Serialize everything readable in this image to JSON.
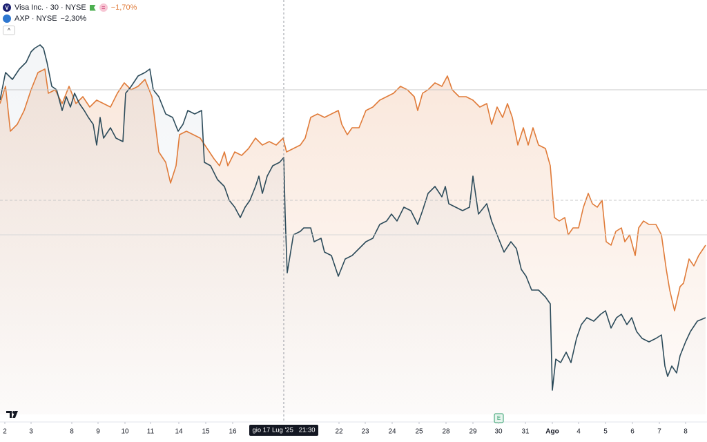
{
  "chart_data": {
    "type": "line",
    "xlim": [
      0,
      1024
    ],
    "ylim": [
      0,
      600
    ],
    "xticks": [
      {
        "value": 7,
        "label": "2"
      },
      {
        "value": 45,
        "label": "3"
      },
      {
        "value": 104,
        "label": "8"
      },
      {
        "value": 142,
        "label": "9"
      },
      {
        "value": 181,
        "label": "10"
      },
      {
        "value": 218,
        "label": "11"
      },
      {
        "value": 259,
        "label": "14"
      },
      {
        "value": 298,
        "label": "15"
      },
      {
        "value": 337,
        "label": "16"
      },
      {
        "value": 491,
        "label": "22"
      },
      {
        "value": 529,
        "label": "23"
      },
      {
        "value": 568,
        "label": "24"
      },
      {
        "value": 607,
        "label": "25"
      },
      {
        "value": 646,
        "label": "28"
      },
      {
        "value": 685,
        "label": "29"
      },
      {
        "value": 722,
        "label": "30"
      },
      {
        "value": 761,
        "label": "31"
      },
      {
        "value": 800,
        "label": "Ago"
      },
      {
        "value": 838,
        "label": "4"
      },
      {
        "value": 877,
        "label": "5"
      },
      {
        "value": 916,
        "label": "6"
      },
      {
        "value": 955,
        "label": "7"
      },
      {
        "value": 993,
        "label": "8"
      }
    ],
    "crosshair": {
      "x": 411,
      "label": "gio 17 Lug '25   21:30"
    },
    "series": [
      {
        "name": "Visa Inc. · 30 · NYSE",
        "change": "−1,70%",
        "color": "#e07b39",
        "x": [
          0,
          8,
          15,
          25,
          35,
          45,
          55,
          65,
          70,
          80,
          90,
          100,
          110,
          120,
          130,
          140,
          150,
          160,
          170,
          180,
          190,
          200,
          210,
          220,
          225,
          230,
          240,
          247,
          255,
          260,
          270,
          290,
          300,
          310,
          318,
          325,
          330,
          340,
          350,
          360,
          370,
          380,
          390,
          400,
          410,
          415,
          425,
          435,
          442,
          450,
          460,
          470,
          480,
          490,
          495,
          503,
          510,
          520,
          530,
          540,
          550,
          560,
          570,
          580,
          590,
          600,
          605,
          612,
          620,
          630,
          640,
          648,
          655,
          665,
          675,
          685,
          695,
          705,
          712,
          720,
          728,
          735,
          742,
          750,
          758,
          765,
          772,
          780,
          790,
          797,
          803,
          810,
          818,
          823,
          830,
          838,
          845,
          852,
          858,
          865,
          872,
          878,
          885,
          892,
          900,
          905,
          912,
          920,
          925,
          932,
          940,
          950,
          958,
          965,
          970,
          977,
          985,
          990,
          998,
          1005,
          1012,
          1022
        ],
        "values": [
          450,
          475,
          410,
          420,
          440,
          470,
          495,
          500,
          465,
          470,
          450,
          475,
          450,
          460,
          445,
          455,
          450,
          445,
          465,
          480,
          470,
          475,
          485,
          460,
          420,
          380,
          365,
          335,
          360,
          405,
          410,
          400,
          385,
          370,
          360,
          380,
          360,
          380,
          375,
          385,
          400,
          390,
          395,
          390,
          400,
          380,
          385,
          390,
          400,
          430,
          435,
          430,
          435,
          440,
          420,
          405,
          415,
          415,
          440,
          445,
          455,
          460,
          465,
          475,
          470,
          460,
          440,
          465,
          470,
          480,
          475,
          490,
          470,
          460,
          460,
          455,
          445,
          450,
          420,
          445,
          430,
          450,
          430,
          390,
          415,
          390,
          415,
          390,
          385,
          360,
          285,
          280,
          285,
          260,
          270,
          270,
          300,
          320,
          305,
          300,
          310,
          250,
          245,
          265,
          270,
          250,
          260,
          230,
          270,
          280,
          275,
          275,
          260,
          210,
          180,
          150,
          185,
          190,
          225,
          215,
          230,
          245
        ]
      },
      {
        "name": "AXP · NYSE",
        "change": "−2,30%",
        "color": "#2c4b5a",
        "x": [
          0,
          8,
          18,
          28,
          38,
          45,
          50,
          58,
          63,
          68,
          75,
          82,
          90,
          96,
          102,
          108,
          115,
          122,
          128,
          135,
          140,
          145,
          150,
          160,
          168,
          178,
          182,
          190,
          200,
          210,
          217,
          222,
          230,
          240,
          250,
          258,
          265,
          272,
          282,
          292,
          296,
          305,
          315,
          325,
          332,
          340,
          348,
          355,
          362,
          370,
          375,
          380,
          387,
          395,
          405,
          411,
          413,
          416,
          425,
          435,
          440,
          450,
          455,
          465,
          470,
          480,
          490,
          500,
          510,
          520,
          530,
          540,
          550,
          560,
          567,
          575,
          585,
          595,
          605,
          612,
          620,
          630,
          640,
          645,
          650,
          660,
          670,
          680,
          685,
          693,
          705,
          712,
          720,
          730,
          740,
          748,
          755,
          762,
          770,
          780,
          790,
          797,
          800,
          805,
          812,
          820,
          827,
          835,
          842,
          850,
          860,
          870,
          877,
          885,
          893,
          900,
          908,
          915,
          922,
          930,
          940,
          950,
          958,
          963,
          967,
          973,
          980,
          985,
          993,
          1000,
          1010,
          1022
        ],
        "values": [
          455,
          495,
          485,
          500,
          510,
          525,
          530,
          535,
          530,
          510,
          475,
          470,
          440,
          460,
          445,
          465,
          450,
          440,
          430,
          420,
          390,
          430,
          400,
          415,
          400,
          395,
          465,
          475,
          490,
          495,
          500,
          470,
          460,
          435,
          430,
          410,
          420,
          440,
          435,
          440,
          365,
          360,
          340,
          330,
          310,
          300,
          285,
          300,
          310,
          330,
          345,
          320,
          345,
          360,
          365,
          372,
          290,
          205,
          260,
          265,
          270,
          270,
          250,
          255,
          235,
          230,
          200,
          225,
          230,
          240,
          250,
          255,
          275,
          280,
          290,
          280,
          300,
          295,
          275,
          295,
          320,
          330,
          315,
          330,
          305,
          300,
          295,
          300,
          345,
          290,
          305,
          280,
          260,
          235,
          250,
          240,
          210,
          200,
          180,
          180,
          170,
          160,
          35,
          80,
          75,
          90,
          75,
          110,
          130,
          140,
          135,
          145,
          150,
          125,
          140,
          145,
          130,
          140,
          120,
          110,
          105,
          110,
          115,
          70,
          55,
          70,
          60,
          85,
          105,
          120,
          135,
          140
        ]
      }
    ]
  }
}
